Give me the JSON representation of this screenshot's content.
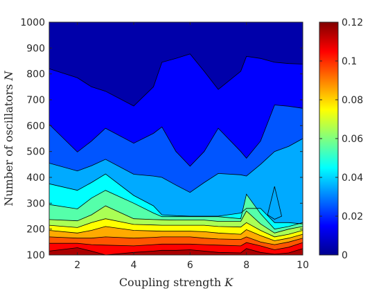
{
  "chart_data": {
    "type": "contour",
    "xlabel": "Coupling strength ",
    "xlabel_var": "K",
    "ylabel": "Number of oscillators ",
    "ylabel_var": "N",
    "x_ticks": [
      "2",
      "4",
      "6",
      "8",
      "10"
    ],
    "y_ticks": [
      "100",
      "200",
      "300",
      "400",
      "500",
      "600",
      "700",
      "800",
      "900",
      "1000"
    ],
    "colorbar_ticks": [
      "0",
      "0.02",
      "0.04",
      "0.06",
      "0.08",
      "0.1",
      "0.12"
    ],
    "xlim": [
      1,
      10
    ],
    "ylim": [
      100,
      1000
    ],
    "clim": [
      0,
      0.12
    ],
    "colormap": "jet",
    "x": [
      1,
      2,
      2.5,
      3,
      4,
      4.7,
      5,
      5.5,
      6,
      6.5,
      7,
      7.8,
      8,
      8.5,
      9,
      9.5,
      10
    ],
    "levels": [
      {
        "value": 0.01,
        "y": [
          820,
          785,
          750,
          733,
          676,
          750,
          845,
          860,
          877,
          810,
          740,
          810,
          868,
          860,
          845,
          840,
          838
        ]
      },
      {
        "value": 0.02,
        "y": [
          605,
          498,
          540,
          590,
          532,
          570,
          595,
          500,
          443,
          500,
          590,
          500,
          474,
          540,
          680,
          675,
          667
        ]
      },
      {
        "value": 0.03,
        "y": [
          455,
          425,
          445,
          470,
          412,
          405,
          400,
          370,
          342,
          380,
          415,
          410,
          405,
          450,
          500,
          520,
          550
        ]
      },
      {
        "value": 0.04,
        "y": [
          375,
          350,
          380,
          413,
          330,
          290,
          255,
          252,
          250,
          250,
          250,
          262,
          280,
          280,
          225,
          225,
          220
        ]
      },
      {
        "value": 0.05,
        "y": [
          295,
          278,
          320,
          350,
          300,
          262,
          248,
          248,
          248,
          248,
          248,
          240,
          335,
          260,
          200,
          210,
          225
        ]
      },
      {
        "value": 0.06,
        "y": [
          237,
          232,
          255,
          290,
          240,
          237,
          236,
          235,
          235,
          235,
          230,
          230,
          270,
          220,
          185,
          200,
          210
        ]
      },
      {
        "value": 0.07,
        "y": [
          215,
          206,
          225,
          240,
          218,
          216,
          215,
          215,
          215,
          215,
          210,
          208,
          225,
          195,
          170,
          180,
          195
        ]
      },
      {
        "value": 0.08,
        "y": [
          195,
          185,
          195,
          210,
          195,
          193,
          192,
          192,
          192,
          190,
          185,
          180,
          198,
          175,
          155,
          165,
          180
        ]
      },
      {
        "value": 0.09,
        "y": [
          170,
          165,
          165,
          170,
          165,
          168,
          170,
          170,
          170,
          165,
          162,
          160,
          170,
          150,
          140,
          150,
          165
        ]
      },
      {
        "value": 0.1,
        "y": [
          145,
          145,
          140,
          138,
          135,
          140,
          142,
          142,
          142,
          140,
          138,
          135,
          148,
          135,
          120,
          130,
          148
        ]
      },
      {
        "value": 0.11,
        "y": [
          115,
          128,
          115,
          100,
          110,
          115,
          118,
          118,
          120,
          115,
          110,
          108,
          125,
          110,
          103,
          108,
          125
        ]
      }
    ],
    "island": {
      "value": 0.03,
      "points": [
        [
          9,
          365
        ],
        [
          8.75,
          255
        ],
        [
          9,
          238
        ],
        [
          9.25,
          250
        ]
      ]
    }
  }
}
